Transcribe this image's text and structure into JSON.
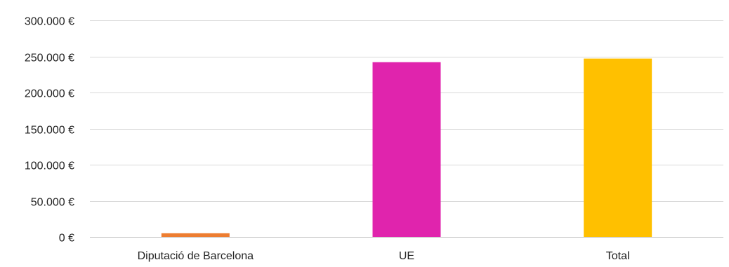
{
  "chart_data": {
    "type": "bar",
    "categories": [
      "Diputació de Barcelona",
      "UE",
      "Total"
    ],
    "values": [
      5000,
      242000,
      247000
    ],
    "colors": [
      "#ED7D31",
      "#E024AD",
      "#FFC000"
    ],
    "ylim": [
      0,
      300000
    ],
    "yticks": [
      0,
      50000,
      100000,
      150000,
      200000,
      250000,
      300000
    ],
    "ytick_labels": [
      "0 €",
      "50.000 €",
      "100.000 €",
      "150.000 €",
      "200.000 €",
      "250.000 €",
      "300.000 €"
    ],
    "title": "",
    "xlabel": "",
    "ylabel": "",
    "grid": true,
    "legend": "none"
  }
}
